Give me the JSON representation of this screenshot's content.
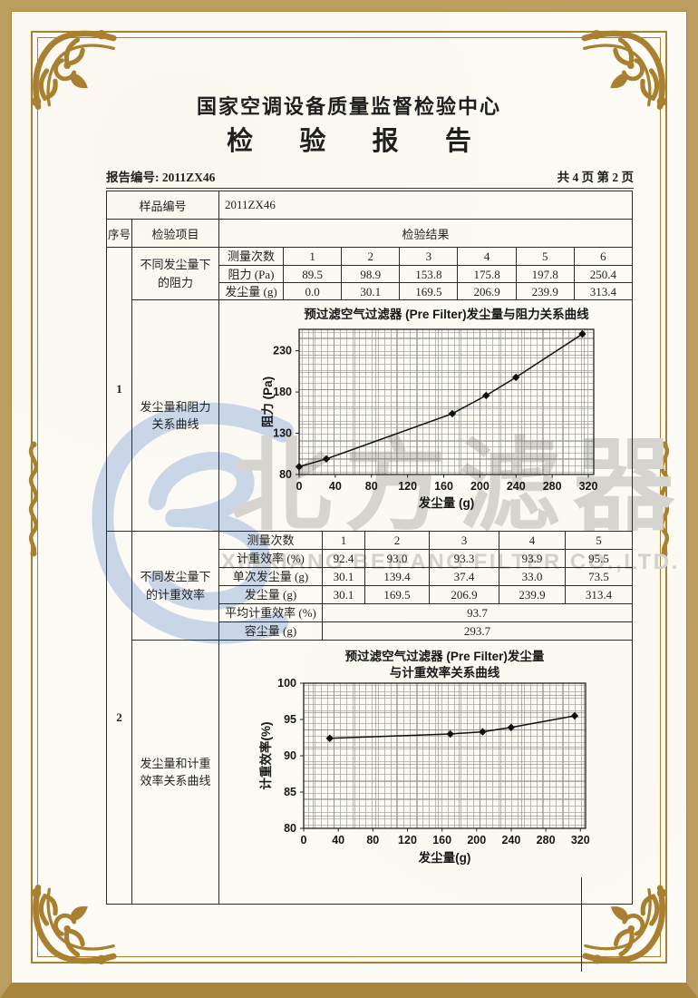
{
  "page": {
    "center_name": "国家空调设备质量监督检验中心",
    "report_title": "检 验 报 告",
    "report_no_label": "报告编号: 2011ZX46",
    "page_info": "共 4 页 第 2 页"
  },
  "table": {
    "sample_label": "样品编号",
    "sample_value": "2011ZX46",
    "col_seq": "序号",
    "col_item": "检验项目",
    "col_result": "检验结果",
    "groups": [
      {
        "seq": "1",
        "item_top": "不同发尘量下的阻力",
        "item_bottom": "发尘量和阻力关系曲线",
        "subtable": {
          "header": [
            "测量次数",
            "1",
            "2",
            "3",
            "4",
            "5",
            "6"
          ],
          "rows": [
            [
              "阻力 (Pa)",
              "89.5",
              "98.9",
              "153.8",
              "175.8",
              "197.8",
              "250.4"
            ],
            [
              "发尘量 (g)",
              "0.0",
              "30.1",
              "169.5",
              "206.9",
              "239.9",
              "313.4"
            ]
          ]
        }
      },
      {
        "seq": "2",
        "item_top": "不同发尘量下的计重效率",
        "item_bottom": "发尘量和计重效率关系曲线",
        "subtable": {
          "header": [
            "测量次数",
            "1",
            "2",
            "3",
            "4",
            "5"
          ],
          "rows": [
            [
              "计重效率 (%)",
              "92.4",
              "93.0",
              "93.3",
              "93.9",
              "95.5"
            ],
            [
              "单次发尘量 (g)",
              "30.1",
              "139.4",
              "37.4",
              "33.0",
              "73.5"
            ],
            [
              "发尘量 (g)",
              "30.1",
              "169.5",
              "206.9",
              "239.9",
              "313.4"
            ]
          ],
          "span_rows": [
            [
              "平均计重效率 (%)",
              "93.7"
            ],
            [
              "容尘量 (g)",
              "293.7"
            ]
          ]
        }
      }
    ]
  },
  "watermark": {
    "logo_name": "beifang-filter-logo",
    "cn_text": "北方滤器",
    "en_text": "XINXIANG BEIFANG FILTER CO.,LTD."
  },
  "chart_data": [
    {
      "type": "line",
      "title": "预过滤空气过滤器 (Pre Filter)发尘量与阻力关系曲线",
      "xlabel": "发尘量 (g)",
      "ylabel": "阻力 (Pa)",
      "x": [
        0.0,
        30.1,
        169.5,
        206.9,
        239.9,
        313.4
      ],
      "y": [
        89.5,
        98.9,
        153.8,
        175.8,
        197.8,
        250.4
      ],
      "xlim": [
        0,
        326
      ],
      "ylim": [
        80,
        256
      ],
      "xticks": [
        0,
        40,
        80,
        120,
        160,
        200,
        240,
        280,
        320
      ],
      "yticks": [
        80,
        130,
        180,
        230
      ],
      "grid": true,
      "marker": "diamond",
      "legend": "none"
    },
    {
      "type": "line",
      "title": "预过滤空气过滤器 (Pre Filter)发尘量",
      "title2": "与计重效率关系曲线",
      "xlabel": "发尘量(g)",
      "ylabel": "计重效率(%)",
      "x": [
        30.1,
        169.5,
        206.9,
        239.9,
        313.4
      ],
      "y": [
        92.4,
        93.0,
        93.3,
        93.9,
        95.5
      ],
      "xlim": [
        0,
        326
      ],
      "ylim": [
        80,
        100
      ],
      "xticks": [
        0,
        40,
        80,
        120,
        160,
        200,
        240,
        280,
        320
      ],
      "yticks": [
        80,
        85,
        90,
        95,
        100
      ],
      "grid": true,
      "marker": "diamond",
      "legend": "none"
    }
  ],
  "colors": {
    "frame_band": "#bc9d60",
    "frame_gold": "#a8802f",
    "ink": "#1f1f1f",
    "watermark_blue": "#c9d6e8",
    "watermark_gray": "#d6d4cf"
  }
}
